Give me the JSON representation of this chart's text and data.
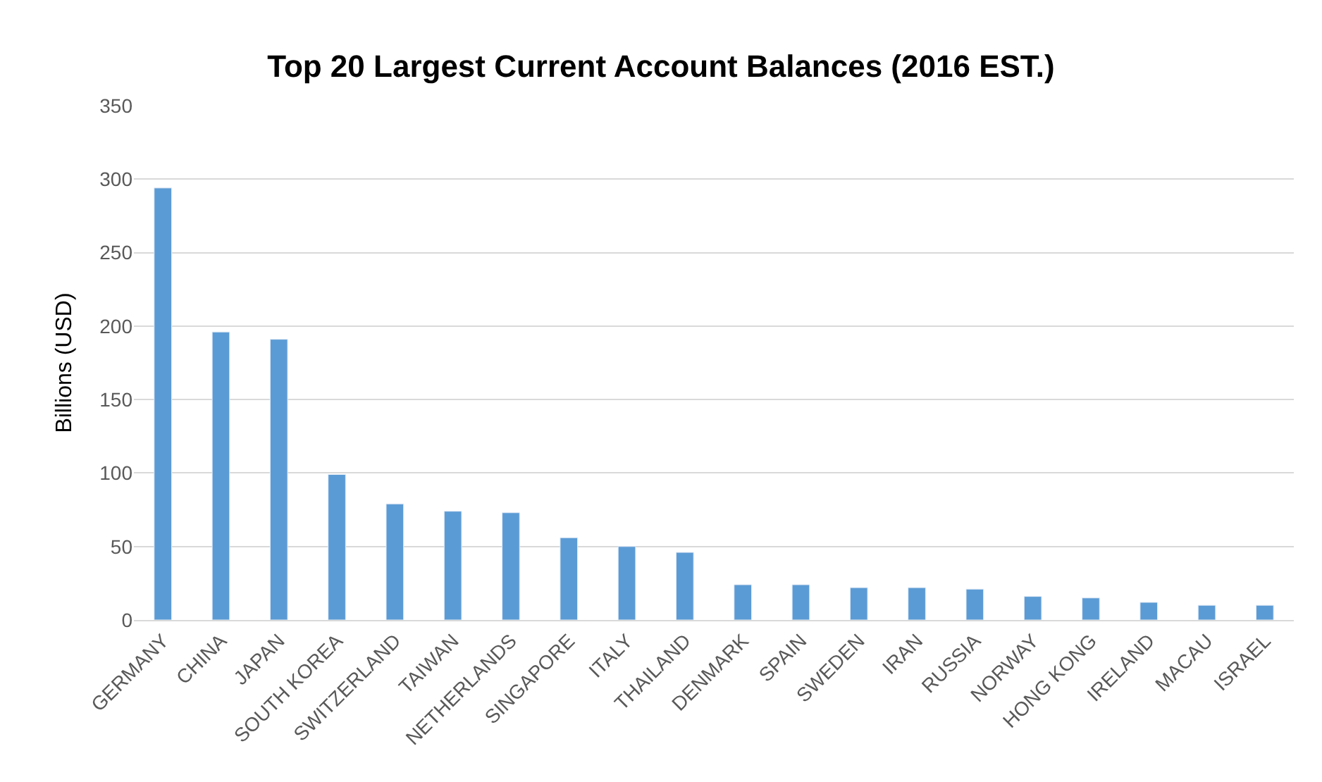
{
  "chart_data": {
    "type": "bar",
    "title": "Top 20 Largest Current Account Balances (2016 EST.)",
    "ylabel": "Billions (USD)",
    "categories": [
      "GERMANY",
      "CHINA",
      "JAPAN",
      "SOUTH KOREA",
      "SWITZERLAND",
      "TAIWAN",
      "NETHERLANDS",
      "SINGAPORE",
      "ITALY",
      "THAILAND",
      "DENMARK",
      "SPAIN",
      "SWEDEN",
      "IRAN",
      "RUSSIA",
      "NORWAY",
      "HONG KONG",
      "IRELAND",
      "MACAU",
      "ISRAEL"
    ],
    "values": [
      294,
      196,
      191,
      99,
      79,
      74,
      73,
      56,
      50,
      46,
      24,
      24,
      22,
      22,
      21,
      16,
      15,
      12,
      10,
      10
    ],
    "color": "#5b9bd5",
    "ylim": [
      0,
      350
    ],
    "yticks": [
      0,
      50,
      100,
      150,
      200,
      250,
      300,
      350
    ],
    "grid": "y",
    "legend": false
  }
}
